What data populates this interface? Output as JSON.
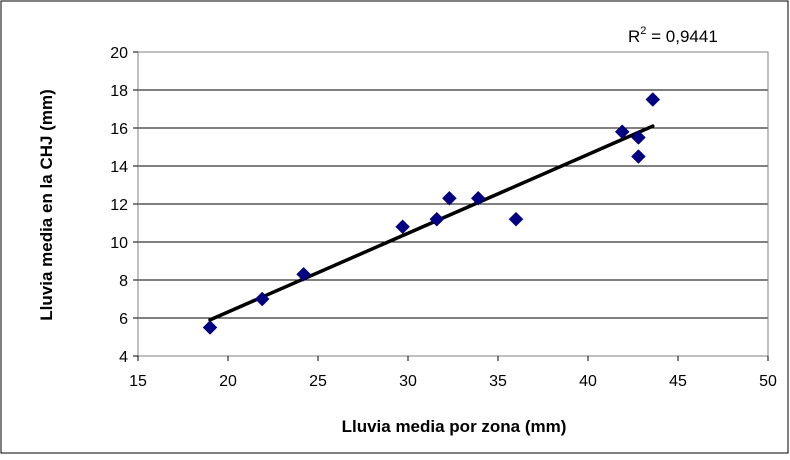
{
  "chart_data": {
    "type": "scatter",
    "title": "",
    "xlabel": "Lluvia media por zona (mm)",
    "ylabel": "Lluvia media en la CHJ (mm)",
    "xlim": [
      15,
      50
    ],
    "ylim": [
      4,
      20
    ],
    "x_ticks": [
      15,
      20,
      25,
      30,
      35,
      40,
      45,
      50
    ],
    "y_ticks": [
      4,
      6,
      8,
      10,
      12,
      14,
      16,
      18,
      20
    ],
    "grid": "horizontal",
    "marker": "diamond",
    "series": [
      {
        "color": "#000080",
        "points": [
          {
            "x": 19.0,
            "y": 5.5
          },
          {
            "x": 21.9,
            "y": 7.0
          },
          {
            "x": 24.2,
            "y": 8.3
          },
          {
            "x": 29.7,
            "y": 10.8
          },
          {
            "x": 31.6,
            "y": 11.2
          },
          {
            "x": 32.3,
            "y": 12.3
          },
          {
            "x": 33.9,
            "y": 12.3
          },
          {
            "x": 36.0,
            "y": 11.2
          },
          {
            "x": 41.9,
            "y": 15.8
          },
          {
            "x": 42.8,
            "y": 15.5
          },
          {
            "x": 42.8,
            "y": 14.5
          },
          {
            "x": 43.6,
            "y": 17.5
          }
        ]
      }
    ],
    "trendline": {
      "type": "linear",
      "color": "#000000",
      "x_range": [
        19.0,
        43.6
      ],
      "y_start": 5.9,
      "y_end": 16.1
    },
    "annotation": {
      "label_prefix": "R",
      "superscript": "2",
      "label_suffix": " = 0,9441"
    }
  }
}
